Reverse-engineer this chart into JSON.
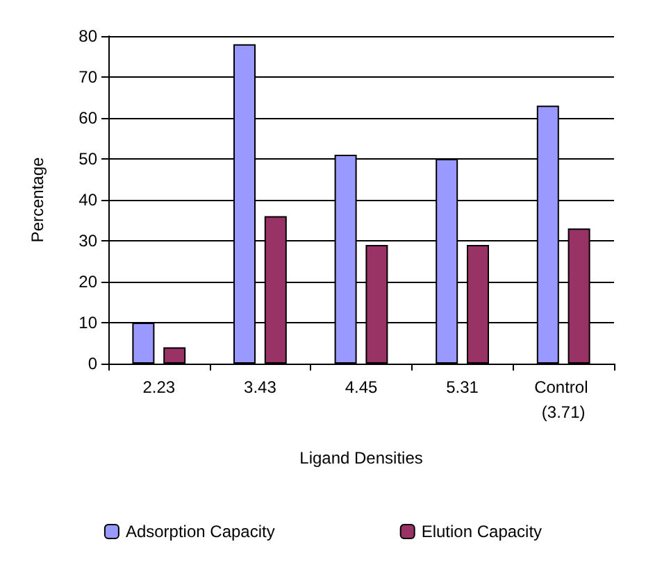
{
  "chart_data": {
    "type": "bar",
    "xlabel": "Ligand Densities",
    "ylabel": "Percentage",
    "categories": [
      "2.23",
      "3.43",
      "4.45",
      "5.31",
      "Control (3.71)"
    ],
    "series": [
      {
        "name": "Adsorption Capacity",
        "color": "#9999ff",
        "values": [
          10,
          78,
          51,
          50,
          63
        ]
      },
      {
        "name": "Elution Capacity",
        "color": "#993366",
        "values": [
          4,
          36,
          29,
          29,
          33
        ]
      }
    ],
    "ylim": [
      0,
      80
    ],
    "yticks": [
      0,
      10,
      20,
      30,
      40,
      50,
      60,
      70,
      80
    ],
    "grid": "y",
    "legend": "bottom"
  }
}
